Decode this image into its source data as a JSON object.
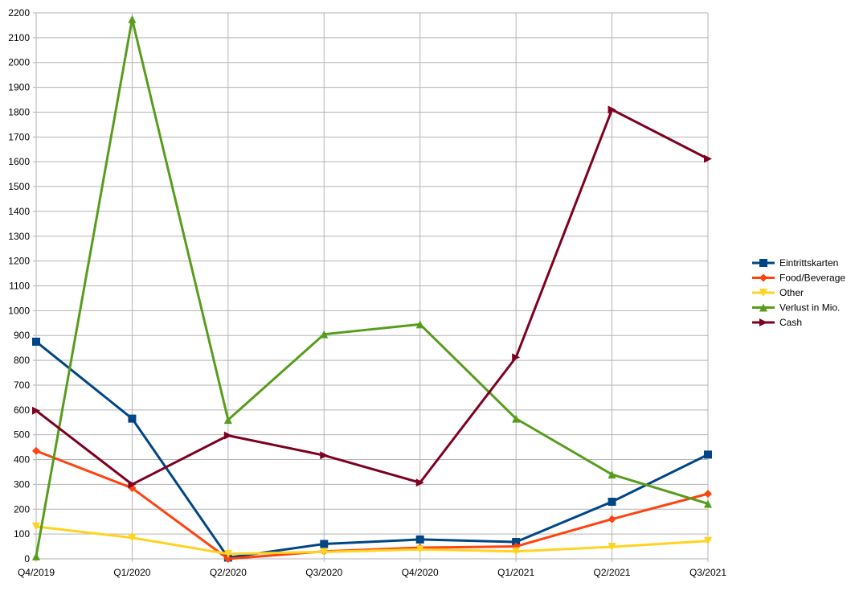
{
  "chart_data": {
    "type": "line",
    "title": "",
    "xlabel": "",
    "ylabel": "",
    "categories": [
      "Q4/2019",
      "Q1/2020",
      "Q2/2020",
      "Q3/2020",
      "Q4/2020",
      "Q1/2021",
      "Q2/2021",
      "Q3/2021"
    ],
    "ylim": [
      0,
      2200
    ],
    "ytick_step": 100,
    "grid": true,
    "legend_position": "right",
    "series": [
      {
        "name": "Eintrittskarten",
        "color": "#004586",
        "marker": "square",
        "values": [
          875,
          565,
          5,
          60,
          78,
          68,
          230,
          420
        ]
      },
      {
        "name": "Food/Beverage",
        "color": "#ff420e",
        "marker": "diamond",
        "values": [
          435,
          285,
          0,
          30,
          45,
          50,
          160,
          262
        ]
      },
      {
        "name": "Other",
        "color": "#ffd320",
        "marker": "triangle-down",
        "values": [
          130,
          85,
          20,
          28,
          38,
          30,
          48,
          72
        ]
      },
      {
        "name": "Verlust in Mio.",
        "color": "#579d1c",
        "marker": "triangle-up",
        "values": [
          10,
          2175,
          560,
          905,
          945,
          565,
          340,
          222
        ]
      },
      {
        "name": "Cash",
        "color": "#7e0021",
        "marker": "triangle-right",
        "values": [
          597,
          300,
          497,
          417,
          307,
          812,
          1810,
          1612
        ]
      }
    ]
  }
}
